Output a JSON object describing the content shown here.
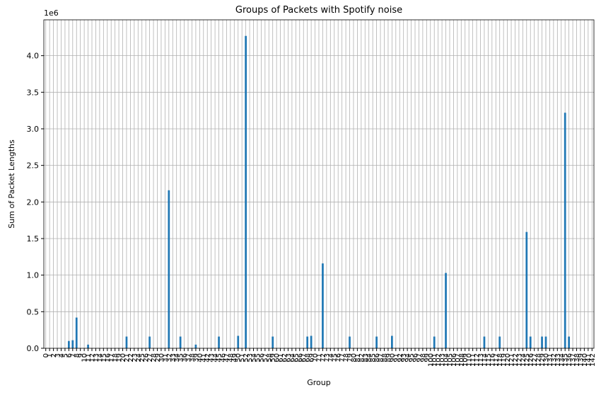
{
  "chart_data": {
    "type": "bar",
    "title": "Groups of Packets with Spotify noise",
    "x_label": "Group",
    "y_label": "Sum of Packet Lengths",
    "y_offset_label": "1e6",
    "categories": [
      0,
      1,
      2,
      3,
      4,
      5,
      6,
      7,
      8,
      9,
      10,
      11,
      12,
      13,
      14,
      15,
      16,
      17,
      18,
      19,
      20,
      21,
      22,
      23,
      24,
      25,
      26,
      27,
      28,
      29,
      30,
      31,
      32,
      33,
      34,
      35,
      36,
      37,
      38,
      39,
      40,
      41,
      42,
      43,
      44,
      45,
      46,
      47,
      48,
      49,
      50,
      51,
      52,
      53,
      54,
      55,
      56,
      57,
      58,
      59,
      60,
      61,
      62,
      63,
      64,
      65,
      66,
      67,
      68,
      69,
      70,
      71,
      72,
      73,
      74,
      75,
      76,
      77,
      78,
      79,
      80,
      81,
      82,
      83,
      84,
      85,
      86,
      87,
      88,
      89,
      90,
      91,
      92,
      93,
      94,
      95,
      96,
      97,
      98,
      99,
      100,
      101,
      102,
      103,
      104,
      105,
      106,
      107,
      108,
      109,
      110,
      111,
      112,
      113,
      114,
      115,
      116,
      117,
      118,
      119,
      120,
      121,
      122,
      123,
      124,
      125,
      126,
      127,
      128,
      129,
      130,
      131,
      132,
      133,
      134,
      135,
      136,
      137,
      138,
      139,
      140,
      141,
      142
    ],
    "values": [
      0,
      0,
      0,
      0,
      0,
      0,
      0.1,
      0.11,
      0.42,
      0,
      0,
      0.05,
      0,
      0,
      0,
      0,
      0,
      0,
      0,
      0,
      0,
      0.16,
      0,
      0,
      0,
      0,
      0,
      0.16,
      0,
      0,
      0,
      0,
      2.16,
      0,
      0,
      0.16,
      0,
      0,
      0,
      0.05,
      0,
      0,
      0,
      0,
      0,
      0.16,
      0,
      0,
      0,
      0,
      0.17,
      0,
      4.27,
      0,
      0,
      0,
      0,
      0,
      0,
      0.16,
      0,
      0,
      0,
      0,
      0,
      0,
      0,
      0,
      0.16,
      0.17,
      0,
      0,
      1.16,
      0,
      0,
      0,
      0,
      0,
      0,
      0.16,
      0,
      0,
      0,
      0,
      0,
      0,
      0.16,
      0,
      0,
      0,
      0.17,
      0,
      0,
      0,
      0,
      0,
      0,
      0,
      0,
      0,
      0,
      0.16,
      0,
      0,
      1.03,
      0,
      0,
      0,
      0,
      0,
      0,
      0,
      0,
      0,
      0.16,
      0,
      0,
      0,
      0.16,
      0,
      0,
      0,
      0,
      0,
      0,
      1.59,
      0.16,
      0,
      0,
      0.16,
      0.16,
      0,
      0,
      0,
      0,
      3.22,
      0.16,
      0,
      0,
      0,
      0,
      0,
      0
    ],
    "color": "#1f77b4",
    "ylim": [
      0,
      4.49
    ],
    "yticks": [
      {
        "value": 0,
        "label": "0.0"
      },
      0.5,
      {
        "value": 1,
        "label": "1.0"
      },
      1.5,
      {
        "value": 2,
        "label": "2.0"
      },
      2.5,
      {
        "value": 3,
        "label": "3.0"
      },
      3.5,
      {
        "value": 4,
        "label": "4.0"
      }
    ],
    "grid": true
  }
}
